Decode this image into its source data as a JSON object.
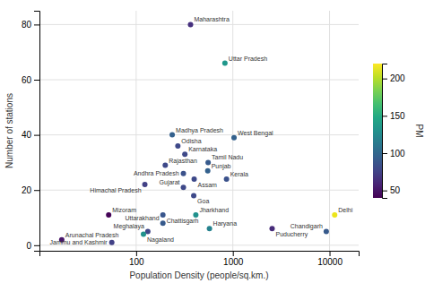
{
  "chart_data": {
    "type": "scatter",
    "xlabel": "Population Density (people/sq.km.)",
    "ylabel": "Number of stations",
    "colorbar_label": "PM",
    "log": "x",
    "grid": true,
    "xlim": [
      10,
      20000
    ],
    "xticks": [
      100,
      1000,
      10000
    ],
    "ylim": [
      -2,
      85
    ],
    "yticks": [
      0,
      20,
      40,
      60,
      80
    ],
    "color_range": [
      40,
      220
    ],
    "color_ticks": [
      50,
      100,
      150,
      200
    ],
    "annotations": [
      "Maharashtra",
      "Uttar Pradesh",
      "Madhya Pradesh",
      "West Bengal",
      "Odisha",
      "Karnataka",
      "Tamil Nadu",
      "Rajasthan",
      "Andhra Pradesh",
      "Punjab",
      "Himachal Pradesh",
      "Assam",
      "Kerala",
      "Gujarat",
      "Goa",
      "Mizoram",
      "Chattisgarh",
      "Jharkhand",
      "Delhi",
      "Uttarakhand",
      "Meghalaya",
      "Haryana",
      "Nagaland",
      "Chandigarh",
      "Puducherry",
      "Arunachal Pradesh",
      "Jammu and Kashmir"
    ],
    "x": [
      365,
      828,
      236,
      1029,
      270,
      319,
      555,
      200,
      308,
      550,
      123,
      398,
      860,
      308,
      394,
      52,
      189,
      414,
      11297,
      189,
      132,
      573,
      119,
      9252,
      2547,
      17,
      56
    ],
    "values": [
      80,
      66,
      40,
      39,
      36,
      33,
      30,
      29,
      26,
      27,
      22,
      24,
      24,
      21,
      18,
      11,
      11,
      11,
      11,
      8,
      5,
      6,
      4,
      5,
      6,
      2,
      1
    ],
    "color_values": [
      65,
      135,
      95,
      95,
      80,
      80,
      90,
      80,
      85,
      95,
      75,
      80,
      85,
      80,
      80,
      42,
      88,
      130,
      215,
      90,
      78,
      120,
      132,
      90,
      62,
      50,
      75
    ]
  }
}
